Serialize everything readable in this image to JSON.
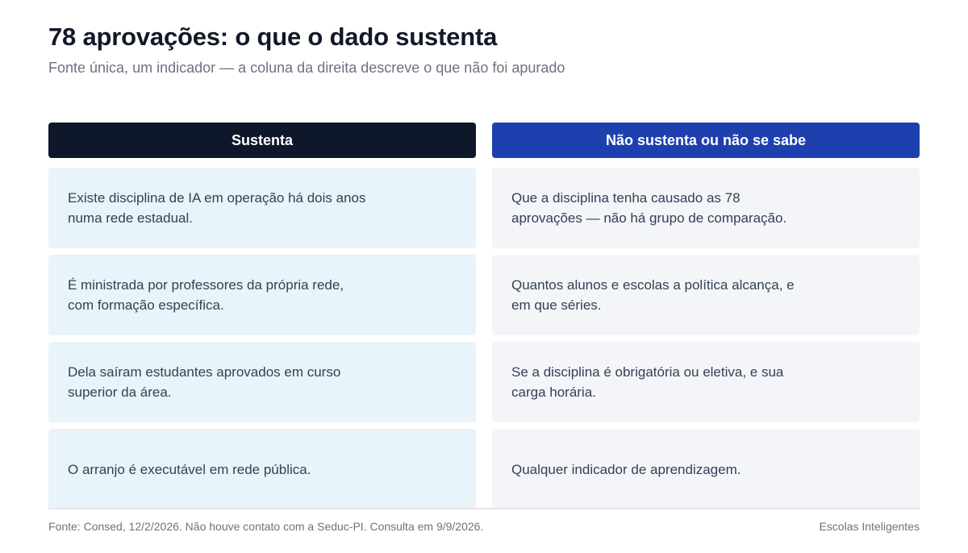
{
  "header": {
    "title": "78 aprovações: o que o dado sustenta",
    "subtitle": "Fonte única, um indicador — a coluna da direita descreve o que não foi apurado"
  },
  "columns": {
    "left": {
      "heading": "Sustenta",
      "items": [
        "Existe disciplina de IA em operação há dois anos numa rede estadual.",
        "É ministrada por professores da própria rede, com formação específica.",
        "Dela saíram estudantes aprovados em curso superior da área.",
        "O arranjo é executável em rede pública."
      ]
    },
    "right": {
      "heading": "Não sustenta ou não se sabe",
      "items": [
        "Que a disciplina tenha causado as 78 aprovações — não há grupo de comparação.",
        "Quantos alunos e escolas a política alcança, e em que séries.",
        "Se a disciplina é obrigatória ou eletiva, e sua carga horária.",
        "Qualquer indicador de aprendizagem."
      ]
    }
  },
  "footer": {
    "source": "Fonte: Consed, 12/2/2026. Não houve contato com a Seduc-PI. Consulta em 9/9/2026.",
    "brand": "Escolas Inteligentes"
  },
  "colors": {
    "left_header": "#0f172a",
    "right_header": "#1e40af",
    "left_card": "#e8f4f9",
    "right_card": "#f3f5f9"
  }
}
